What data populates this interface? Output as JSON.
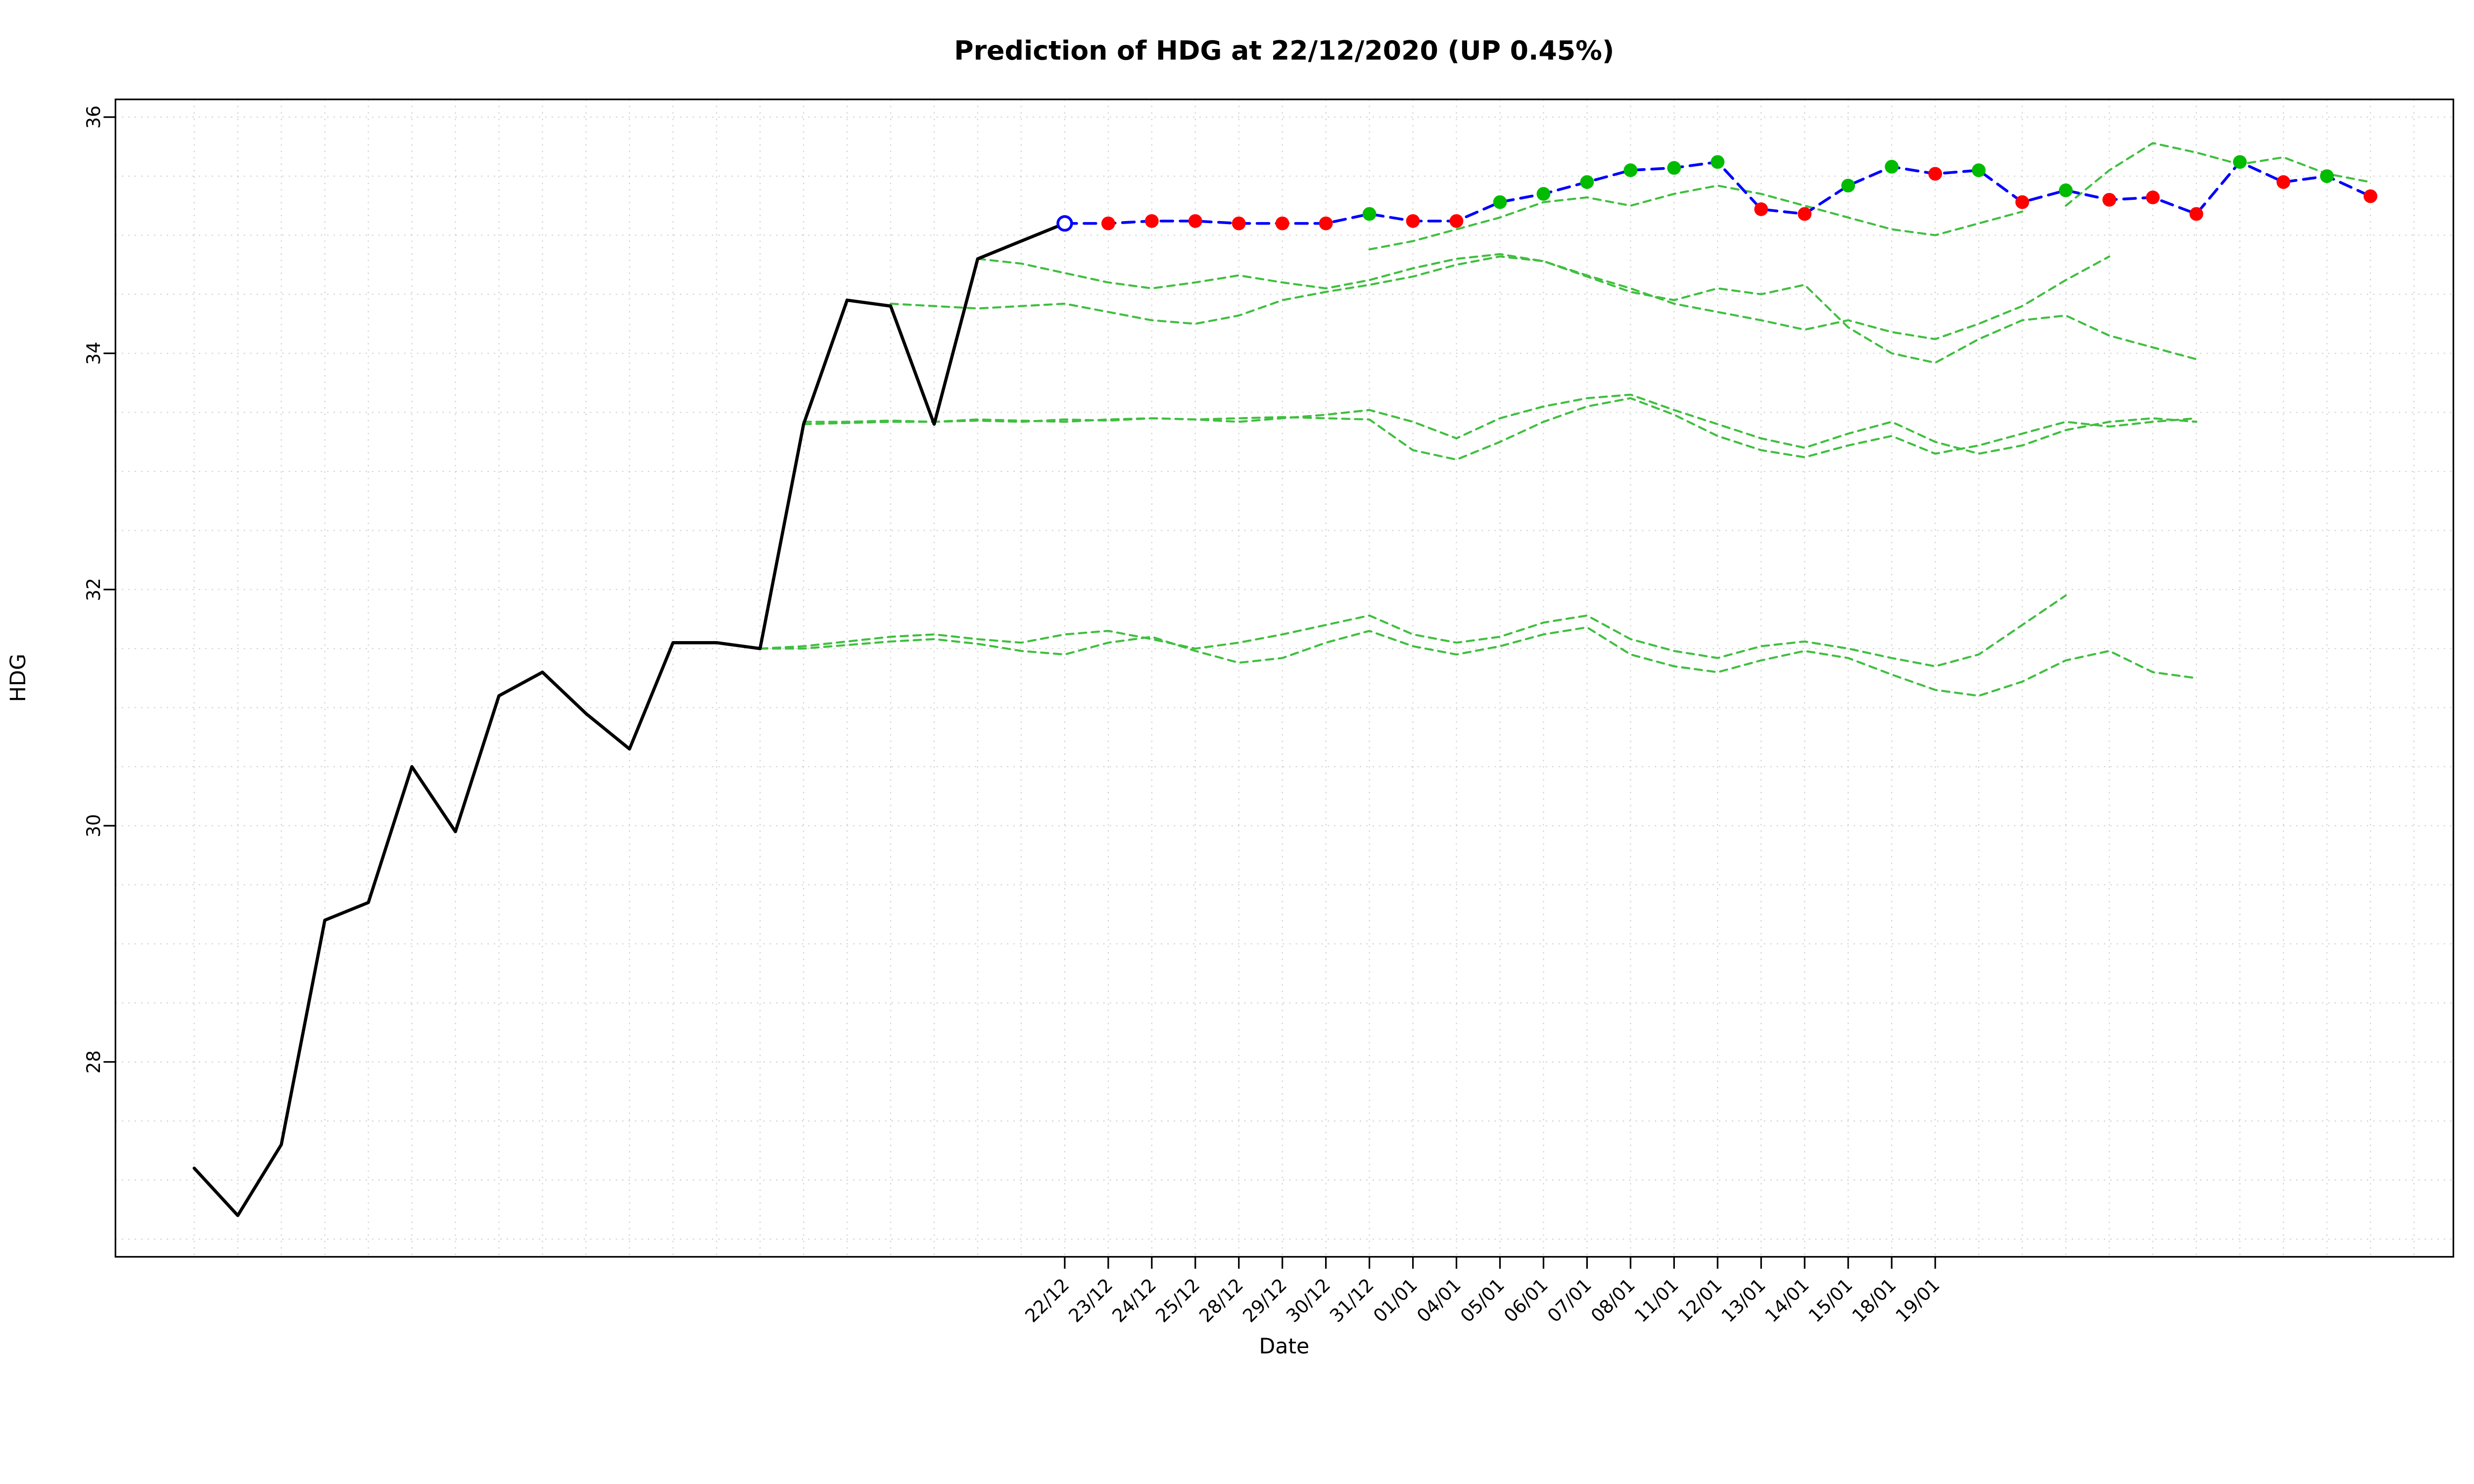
{
  "chart_data": {
    "type": "line",
    "title": "Prediction of HDG at 22/12/2020 (UP 0.45%)",
    "xlabel": "Date",
    "ylabel": "HDG",
    "ylim": [
      26.35,
      36.15
    ],
    "y_ticks": [
      28,
      30,
      32,
      34,
      36
    ],
    "y_grid_range": [
      26.5,
      36.0
    ],
    "y_grid_step": 0.5,
    "n_slots": 52,
    "x_tick_first_index": 20,
    "x_tick_labels": [
      "22/12",
      "23/12",
      "24/12",
      "25/12",
      "28/12",
      "29/12",
      "30/12",
      "31/12",
      "01/01",
      "04/01",
      "05/01",
      "06/01",
      "07/01",
      "08/01",
      "11/01",
      "12/01",
      "13/01",
      "14/01",
      "15/01",
      "18/01",
      "19/01"
    ],
    "grid": true,
    "legend": "none",
    "colors": {
      "history": "#000000",
      "prediction_line": "#0000ff",
      "up_point": "#00bb00",
      "down_point": "#ff0000",
      "start_point": "#0000ff",
      "simulation": "#3fbf3f",
      "grid": "#d3d3d3",
      "box": "#000000"
    },
    "series": [
      {
        "name": "history",
        "role": "history",
        "start": 0,
        "values": [
          27.1,
          26.7,
          27.3,
          29.2,
          29.35,
          30.5,
          29.95,
          31.1,
          31.3,
          30.95,
          30.65,
          31.55,
          31.55,
          31.5,
          33.4,
          34.45,
          34.4,
          33.4,
          34.8,
          34.95,
          35.1
        ]
      },
      {
        "name": "prediction",
        "role": "prediction",
        "start": 20,
        "values": [
          35.1,
          35.1,
          35.12,
          35.12,
          35.1,
          35.1,
          35.1,
          35.18,
          35.12,
          35.12,
          35.28,
          35.35,
          35.45,
          35.55,
          35.57,
          35.62,
          35.22,
          35.18,
          35.42,
          35.58,
          35.52,
          35.55,
          35.28,
          35.38,
          35.3,
          35.32,
          35.18,
          35.62,
          35.45,
          35.5,
          35.33
        ],
        "point_colors": [
          "start",
          "down",
          "down",
          "down",
          "down",
          "down",
          "down",
          "up",
          "down",
          "down",
          "up",
          "up",
          "up",
          "up",
          "up",
          "up",
          "down",
          "down",
          "up",
          "up",
          "down",
          "up",
          "down",
          "up",
          "down",
          "down",
          "down",
          "up",
          "down",
          "up",
          "down"
        ]
      },
      {
        "name": "simulation-1",
        "role": "simulation",
        "start": 13,
        "values": [
          31.5,
          31.52,
          31.56,
          31.6,
          31.62,
          31.58,
          31.55,
          31.62,
          31.65,
          31.58,
          31.5,
          31.55,
          31.62,
          31.7,
          31.78,
          31.62,
          31.55,
          31.6,
          31.72,
          31.78,
          31.58,
          31.48,
          31.42,
          31.52,
          31.56,
          31.5,
          31.42,
          31.35,
          31.45,
          31.7,
          31.95
        ]
      },
      {
        "name": "simulation-2",
        "role": "simulation",
        "start": 13,
        "values": [
          31.5,
          31.5,
          31.53,
          31.56,
          31.58,
          31.54,
          31.48,
          31.45,
          31.55,
          31.6,
          31.48,
          31.38,
          31.42,
          31.55,
          31.65,
          31.52,
          31.45,
          31.52,
          31.62,
          31.68,
          31.45,
          31.35,
          31.3,
          31.4,
          31.48,
          31.42,
          31.28,
          31.15,
          31.1,
          31.22,
          31.4,
          31.48,
          31.3,
          31.25
        ]
      },
      {
        "name": "simulation-3",
        "role": "simulation",
        "start": 14,
        "values": [
          33.42,
          33.42,
          33.43,
          33.42,
          33.44,
          33.43,
          33.42,
          33.44,
          33.45,
          33.44,
          33.42,
          33.45,
          33.48,
          33.52,
          33.42,
          33.28,
          33.45,
          33.55,
          33.62,
          33.65,
          33.52,
          33.4,
          33.28,
          33.2,
          33.32,
          33.42,
          33.25,
          33.15,
          33.22,
          33.35,
          33.42,
          33.45,
          33.42
        ]
      },
      {
        "name": "simulation-4",
        "role": "simulation",
        "start": 14,
        "values": [
          33.4,
          33.41,
          33.42,
          33.42,
          33.43,
          33.42,
          33.44,
          33.43,
          33.45,
          33.44,
          33.45,
          33.46,
          33.45,
          33.44,
          33.18,
          33.1,
          33.25,
          33.42,
          33.55,
          33.62,
          33.48,
          33.3,
          33.18,
          33.12,
          33.22,
          33.3,
          33.15,
          33.22,
          33.32,
          33.42,
          33.38,
          33.42,
          33.45
        ]
      },
      {
        "name": "simulation-5",
        "role": "simulation",
        "start": 16,
        "values": [
          34.42,
          34.4,
          34.38,
          34.4,
          34.42,
          34.35,
          34.28,
          34.25,
          34.32,
          34.45,
          34.52,
          34.58,
          34.65,
          34.75,
          34.82,
          34.78,
          34.65,
          34.52,
          34.45,
          34.55,
          34.5,
          34.58,
          34.22,
          34.0,
          33.92,
          34.12,
          34.28,
          34.32,
          34.15,
          34.05,
          33.95
        ]
      },
      {
        "name": "simulation-6",
        "role": "simulation",
        "start": 18,
        "values": [
          34.8,
          34.76,
          34.68,
          34.6,
          34.55,
          34.6,
          34.66,
          34.6,
          34.55,
          34.62,
          34.72,
          34.8,
          34.84,
          34.78,
          34.66,
          34.55,
          34.42,
          34.35,
          34.28,
          34.2,
          34.28,
          34.18,
          34.12,
          34.25,
          34.4,
          34.62,
          34.82
        ]
      },
      {
        "name": "simulation-7",
        "role": "simulation",
        "start": 27,
        "values": [
          34.88,
          34.95,
          35.05,
          35.15,
          35.28,
          35.32,
          35.25,
          35.35,
          35.42,
          35.35,
          35.25,
          35.15,
          35.05,
          35.0,
          35.1,
          35.2
        ]
      },
      {
        "name": "simulation-8",
        "role": "simulation",
        "start": 43,
        "values": [
          35.25,
          35.55,
          35.78,
          35.7,
          35.6,
          35.66,
          35.52,
          35.45
        ]
      }
    ]
  }
}
